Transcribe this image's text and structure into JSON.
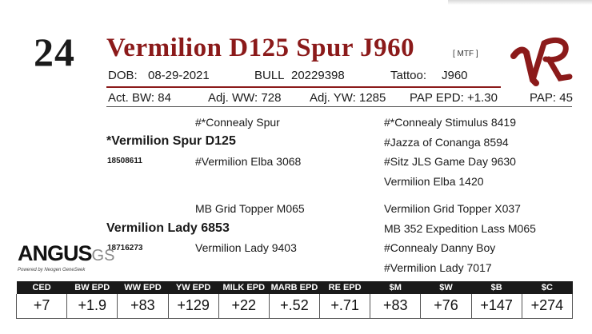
{
  "lot_number": "24",
  "animal_name": "Vermilion D125 Spur J960",
  "designations": "[ MTF ]",
  "id_row": {
    "dob_label": "DOB:",
    "dob": "08-29-2021",
    "sex_label": "BULL",
    "registration": "20229398",
    "tattoo_label": "Tattoo:",
    "tattoo": "J960"
  },
  "stats": {
    "act_bw": "Act. BW: 84",
    "adj_ww": "Adj. WW: 728",
    "adj_yw": "Adj. YW: 1285",
    "pap_epd": "PAP EPD: +1.30",
    "pap": "PAP: 45"
  },
  "pedigree": {
    "sire": "*Vermilion Spur D125",
    "sire_reg": "18508611",
    "sire_sire": "#*Connealy Spur",
    "sire_dam": "#Vermilion Elba 3068",
    "sss": "#*Connealy Stimulus 8419",
    "ssd": "#Jazza of Conanga 8594",
    "sds": "#Sitz JLS Game Day 9630",
    "sdd": "Vermilion Elba 1420",
    "dam": "Vermilion Lady 6853",
    "dam_reg": "18716273",
    "dam_sire": "MB Grid Topper M065",
    "dam_dam": "Vermilion Lady 9403",
    "dss": "Vermilion Grid Topper X037",
    "dsd": "MB 352 Expedition Lass M065",
    "dds": "#Connealy Danny Boy",
    "ddd": "#Vermilion Lady 7017"
  },
  "logo": {
    "main": "ANGUS",
    "suffix": "GS",
    "tagline": "Powered by Neogen GeneSeek"
  },
  "brand_mark": "VR",
  "colors": {
    "accent": "#8b1a1a",
    "header_bg": "#1a1a1a"
  },
  "epd_table": {
    "headers": [
      "CED",
      "BW EPD",
      "WW EPD",
      "YW EPD",
      "MILK EPD",
      "MARB EPD",
      "RE EPD",
      "$M",
      "$W",
      "$B",
      "$C"
    ],
    "values": [
      "+7",
      "+1.9",
      "+83",
      "+129",
      "+22",
      "+.52",
      "+.71",
      "+83",
      "+76",
      "+147",
      "+274"
    ]
  }
}
